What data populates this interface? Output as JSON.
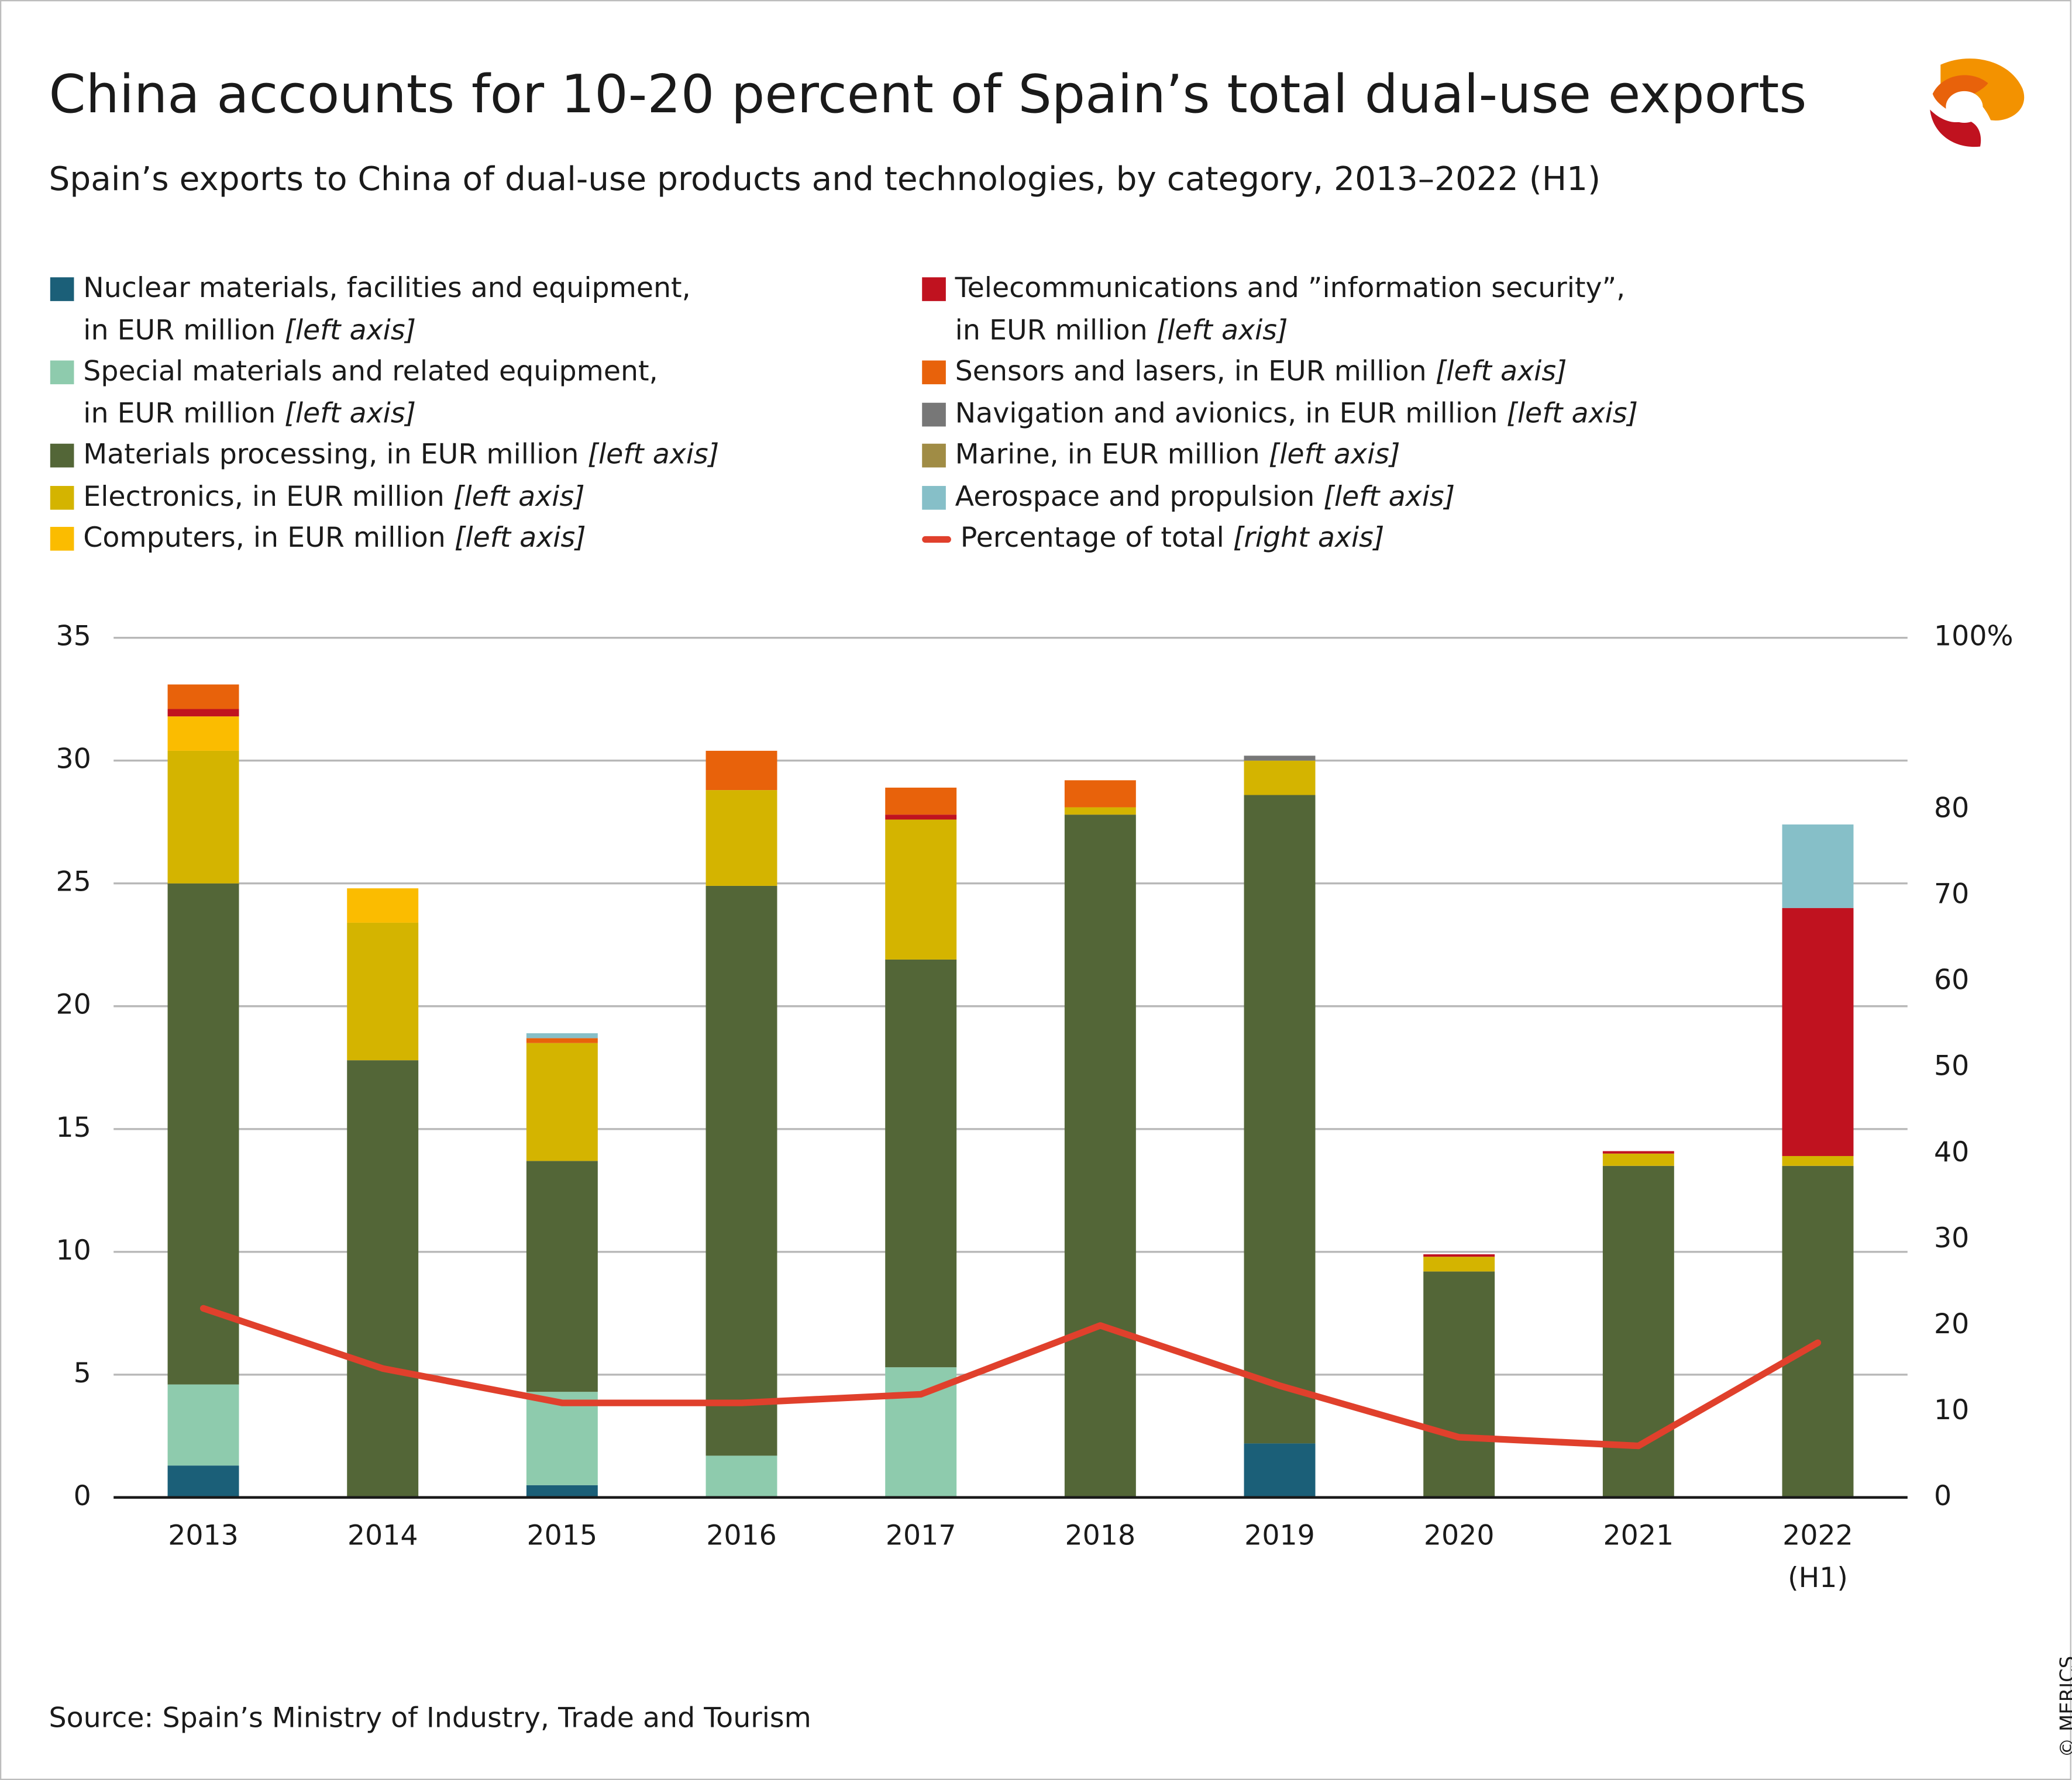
{
  "chart_data": {
    "type": "bar",
    "stacked": true,
    "title": "China accounts for 10-20 percent of Spain’s total dual-use exports",
    "subtitle": "Spain’s exports to China of dual-use products and technologies, by category, 2013–2022 (H1)",
    "source": "Source: Spain’s Ministry of Industry, Trade and Tourism",
    "copyright": "© MERICS",
    "categories": [
      "2013",
      "2014",
      "2015",
      "2016",
      "2017",
      "2018",
      "2019",
      "2020",
      "2021",
      "2022\n(H1)"
    ],
    "series": [
      {
        "name": "Nuclear materials, facilities and equipment,\nin EUR million [left axis]",
        "color": "#1b5f78",
        "values": [
          1.3,
          0,
          0.5,
          0,
          0,
          0,
          2.2,
          0,
          0,
          0
        ]
      },
      {
        "name": "Special materials and related equipment,\nin EUR million [left axis]",
        "color": "#8ecbad",
        "values": [
          3.3,
          0,
          3.8,
          1.7,
          5.3,
          0,
          0,
          0,
          0,
          0
        ]
      },
      {
        "name": "Materials processing, in EUR million [left axis]",
        "color": "#536637",
        "values": [
          20.4,
          17.8,
          9.4,
          23.2,
          16.6,
          27.8,
          26.4,
          9.2,
          13.5,
          13.5
        ]
      },
      {
        "name": "Electronics, in EUR million [left axis]",
        "color": "#d4b400",
        "values": [
          5.4,
          5.6,
          4.8,
          3.9,
          5.7,
          0.3,
          1.4,
          0.6,
          0.5,
          0.4
        ]
      },
      {
        "name": "Computers, in EUR million [left axis]",
        "color": "#fbbc00",
        "values": [
          1.4,
          1.4,
          0,
          0,
          0,
          0,
          0,
          0,
          0,
          0
        ]
      },
      {
        "name": "Telecommunications and ”information security”,\nin EUR million [left axis]",
        "color": "#c0121f",
        "values": [
          0.3,
          0,
          0,
          0,
          0.2,
          0,
          0,
          0.1,
          0.1,
          10.1
        ]
      },
      {
        "name": "Sensors and lasers, in EUR million [left axis]",
        "color": "#e8620b",
        "values": [
          1.0,
          0,
          0.2,
          1.6,
          1.1,
          1.1,
          0,
          0,
          0,
          0
        ]
      },
      {
        "name": "Navigation and avionics, in EUR million [left axis]",
        "color": "#777777",
        "values": [
          0,
          0,
          0,
          0,
          0,
          0,
          0.2,
          0,
          0,
          0
        ]
      },
      {
        "name": "Marine, in EUR million [left axis]",
        "color": "#a08c45",
        "values": [
          0,
          0,
          0,
          0,
          0,
          0,
          0,
          0,
          0,
          0
        ]
      },
      {
        "name": "Aerospace and propulsion [left axis]",
        "color": "#86bfc8",
        "values": [
          0,
          0,
          0.2,
          0,
          0,
          0,
          0,
          0,
          0,
          3.4
        ]
      },
      {
        "name": "Percentage of total [right axis]",
        "color": "#e0402c",
        "type": "line",
        "axis": "y2",
        "values": [
          22,
          15,
          11,
          11,
          12,
          20,
          13,
          7,
          6,
          18
        ]
      }
    ],
    "ylim": [
      0,
      35
    ],
    "yticks": [
      0,
      5,
      10,
      15,
      20,
      25,
      30,
      35
    ],
    "y2lim": [
      0,
      100
    ],
    "y2ticks": [
      0,
      10,
      20,
      30,
      40,
      50,
      60,
      70,
      80,
      {
        "value": 100,
        "label": "100%"
      }
    ],
    "grid": true,
    "legend_columns": 2
  }
}
